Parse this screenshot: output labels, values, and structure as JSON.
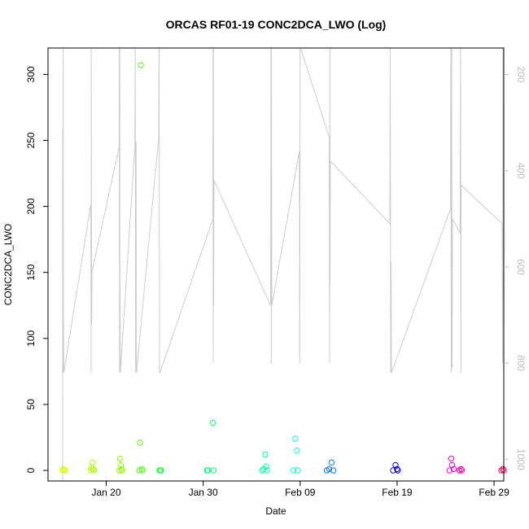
{
  "chart_data": {
    "type": "scatter",
    "title": "ORCAS RF01-19 CONC2DCA_LWO (Log)",
    "xlabel": "Date",
    "ylabel": "CONC2DCA_LWO",
    "xlim": [
      "2016-01-14",
      "2016-03-01"
    ],
    "ylim": [
      -8,
      320
    ],
    "x_ticks": [
      {
        "label": "Jan 20",
        "value": "2016-01-20"
      },
      {
        "label": "Jan 30",
        "value": "2016-01-30"
      },
      {
        "label": "Feb 09",
        "value": "2016-02-09"
      },
      {
        "label": "Feb 19",
        "value": "2016-02-19"
      },
      {
        "label": "Feb 29",
        "value": "2016-02-29"
      }
    ],
    "y_ticks": [
      0,
      50,
      100,
      150,
      200,
      250,
      300
    ],
    "right_axis": {
      "label": "",
      "reversed": true,
      "range": [
        1045,
        145
      ],
      "ticks": [
        200,
        400,
        600,
        800,
        1000
      ],
      "color": "#bdbdbd"
    },
    "grid": false,
    "legend": "none",
    "series": [
      {
        "color": "#ddff00",
        "points": [
          [
            "2016-01-15T12:00",
            0
          ],
          [
            "2016-01-15T14:00",
            1
          ],
          [
            "2016-01-15T16:00",
            0.5
          ],
          [
            "2016-01-15T18:00",
            0
          ]
        ]
      },
      {
        "color": "#aaff00",
        "points": [
          [
            "2016-01-18T10:00",
            0
          ],
          [
            "2016-01-18T12:00",
            2
          ],
          [
            "2016-01-18T14:00",
            6
          ],
          [
            "2016-01-18T16:00",
            1
          ],
          [
            "2016-01-18T18:00",
            0
          ]
        ]
      },
      {
        "color": "#88ff00",
        "points": [
          [
            "2016-01-21T09:00",
            0
          ],
          [
            "2016-01-21T10:00",
            9
          ],
          [
            "2016-01-21T12:00",
            4
          ],
          [
            "2016-01-21T14:00",
            1
          ],
          [
            "2016-01-21T16:00",
            0
          ]
        ]
      },
      {
        "color": "#55ff11",
        "points": [
          [
            "2016-01-23T10:00",
            0
          ],
          [
            "2016-01-23T12:00",
            21
          ],
          [
            "2016-01-23T14:00",
            307
          ],
          [
            "2016-01-23T16:00",
            1
          ],
          [
            "2016-01-23T18:00",
            0
          ]
        ]
      },
      {
        "color": "#22ff44",
        "points": [
          [
            "2016-01-25T12:00",
            0
          ],
          [
            "2016-01-25T14:00",
            0
          ],
          [
            "2016-01-25T16:00",
            0
          ]
        ]
      },
      {
        "color": "#00ff77",
        "points": [
          [
            "2016-01-30T10:00",
            0
          ],
          [
            "2016-01-30T12:00",
            0
          ],
          [
            "2016-01-31T00:00",
            36
          ],
          [
            "2016-01-31T02:00",
            0
          ]
        ]
      },
      {
        "color": "#00ffaa",
        "points": [
          [
            "2016-02-05T02:00",
            0
          ],
          [
            "2016-02-05T06:00",
            1
          ],
          [
            "2016-02-05T10:00",
            12
          ],
          [
            "2016-02-05T12:00",
            3
          ],
          [
            "2016-02-05T14:00",
            0
          ]
        ]
      },
      {
        "color": "#00ffdd",
        "points": [
          [
            "2016-02-08T08:00",
            0
          ],
          [
            "2016-02-08T12:00",
            24
          ],
          [
            "2016-02-08T16:00",
            15
          ],
          [
            "2016-02-08T18:00",
            0
          ]
        ]
      },
      {
        "color": "#0077ff",
        "points": [
          [
            "2016-02-11T18:00",
            0
          ],
          [
            "2016-02-12T00:00",
            1
          ],
          [
            "2016-02-12T06:00",
            6
          ],
          [
            "2016-02-12T10:00",
            0
          ]
        ]
      },
      {
        "color": "#1100ee",
        "points": [
          [
            "2016-02-18T14:00",
            0
          ],
          [
            "2016-02-18T20:00",
            4
          ],
          [
            "2016-02-19T00:00",
            1
          ],
          [
            "2016-02-19T02:00",
            0
          ]
        ]
      },
      {
        "color": "#ff00ee",
        "points": [
          [
            "2016-02-24T10:00",
            0
          ],
          [
            "2016-02-24T14:00",
            9
          ],
          [
            "2016-02-24T16:00",
            4
          ],
          [
            "2016-02-24T20:00",
            1
          ]
        ]
      },
      {
        "color": "#ff00aa",
        "points": [
          [
            "2016-02-25T10:00",
            0
          ],
          [
            "2016-02-25T14:00",
            1
          ],
          [
            "2016-02-25T16:00",
            0
          ]
        ]
      },
      {
        "color": "#ff0066",
        "points": [
          [
            "2016-02-29T18:00",
            0
          ],
          [
            "2016-02-29T22:00",
            1
          ],
          [
            "2016-03-01T00:00",
            0
          ]
        ]
      }
    ],
    "pressure_trace": {
      "color": "#cccccc",
      "points": [
        [
          "2016-01-15T12:00",
          1045
        ],
        [
          "2016-01-15T12:30",
          310
        ],
        [
          "2016-01-15T13:00",
          820
        ],
        [
          "2016-01-15T13:30",
          145
        ],
        [
          "2016-01-15T14:00",
          690
        ],
        [
          "2016-01-15T15:00",
          820
        ],
        [
          "2016-01-18T10:00",
          470
        ],
        [
          "2016-01-18T10:30",
          820
        ],
        [
          "2016-01-18T11:00",
          145
        ],
        [
          "2016-01-18T11:30",
          530
        ],
        [
          "2016-01-18T12:00",
          720
        ],
        [
          "2016-01-18T13:00",
          610
        ],
        [
          "2016-01-21T08:00",
          350
        ],
        [
          "2016-01-21T08:30",
          145
        ],
        [
          "2016-01-21T09:00",
          820
        ],
        [
          "2016-01-21T09:30",
          145
        ],
        [
          "2016-01-21T10:00",
          610
        ],
        [
          "2016-01-21T11:00",
          820
        ],
        [
          "2016-01-22T23:00",
          350
        ],
        [
          "2016-01-23T00:00",
          145
        ],
        [
          "2016-01-23T01:00",
          820
        ],
        [
          "2016-01-23T02:00",
          340
        ],
        [
          "2016-01-23T03:00",
          820
        ],
        [
          "2016-01-25T10:00",
          330
        ],
        [
          "2016-01-25T11:00",
          145
        ],
        [
          "2016-01-25T12:00",
          820
        ],
        [
          "2016-01-25T13:00",
          820
        ],
        [
          "2016-01-31T00:00",
          500
        ],
        [
          "2016-01-31T00:30",
          145
        ],
        [
          "2016-01-31T01:00",
          800
        ],
        [
          "2016-01-31T01:30",
          145
        ],
        [
          "2016-01-31T02:00",
          680
        ],
        [
          "2016-01-31T03:00",
          420
        ],
        [
          "2016-02-05T23:00",
          680
        ],
        [
          "2016-02-06T00:00",
          145
        ],
        [
          "2016-02-06T00:30",
          800
        ],
        [
          "2016-02-06T01:00",
          145
        ],
        [
          "2016-02-06T02:00",
          680
        ],
        [
          "2016-02-08T22:00",
          360
        ],
        [
          "2016-02-08T23:00",
          800
        ],
        [
          "2016-02-09T00:00",
          145
        ],
        [
          "2016-02-09T01:00",
          145
        ],
        [
          "2016-02-12T00:00",
          330
        ],
        [
          "2016-02-12T01:00",
          800
        ],
        [
          "2016-02-12T01:30",
          145
        ],
        [
          "2016-02-12T02:00",
          640
        ],
        [
          "2016-02-12T03:00",
          380
        ],
        [
          "2016-02-18T06:00",
          510
        ],
        [
          "2016-02-18T07:00",
          145
        ],
        [
          "2016-02-18T08:00",
          820
        ],
        [
          "2016-02-18T09:00",
          590
        ],
        [
          "2016-02-18T10:00",
          820
        ],
        [
          "2016-02-24T12:00",
          480
        ],
        [
          "2016-02-24T13:00",
          145
        ],
        [
          "2016-02-24T14:00",
          820
        ],
        [
          "2016-02-24T15:00",
          145
        ],
        [
          "2016-02-24T16:00",
          810
        ],
        [
          "2016-02-24T17:00",
          500
        ],
        [
          "2016-02-25T12:00",
          530
        ],
        [
          "2016-02-25T13:00",
          145
        ],
        [
          "2016-02-25T14:00",
          820
        ],
        [
          "2016-02-25T14:30",
          430
        ],
        [
          "2016-02-29T20:00",
          510
        ],
        [
          "2016-02-29T21:00",
          800
        ],
        [
          "2016-02-29T22:00",
          145
        ],
        [
          "2016-02-29T23:00",
          580
        ],
        [
          "2016-03-01T00:00",
          810
        ]
      ]
    }
  }
}
